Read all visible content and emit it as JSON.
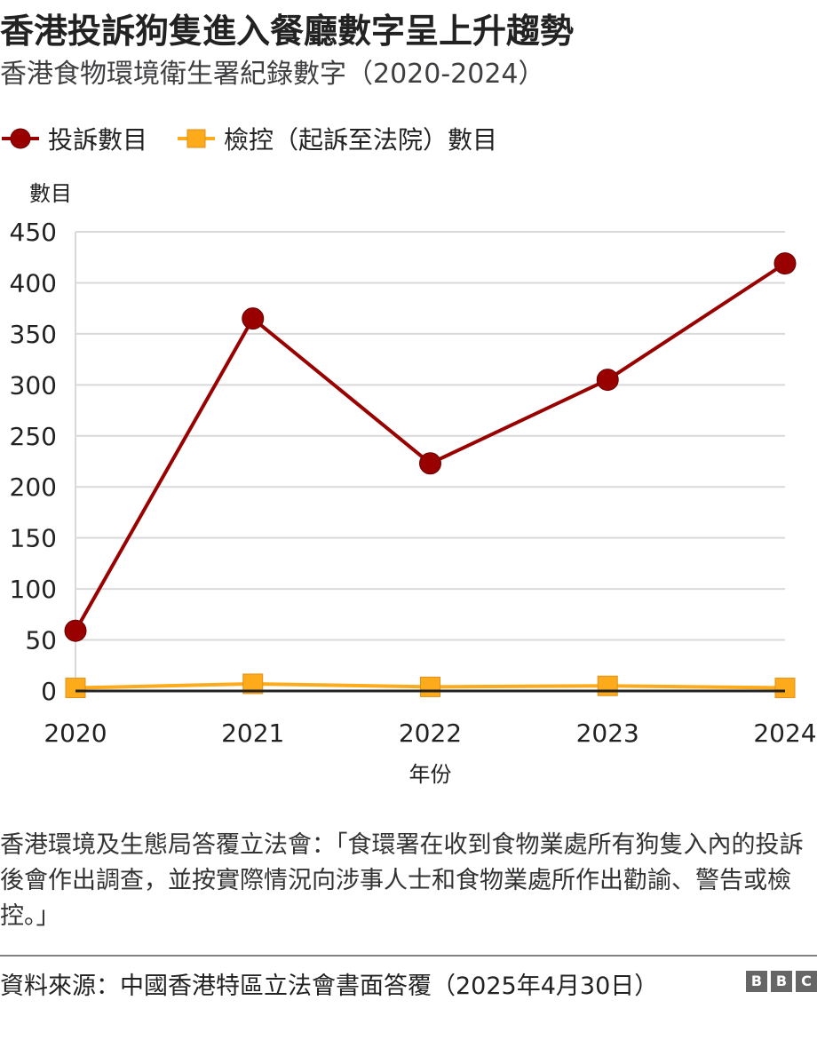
{
  "header": {
    "title": "香港投訴狗隻進入餐廳數字呈上升趨勢",
    "subtitle": "香港食物環境衛生署紀錄數字（2020-2024）"
  },
  "legend": {
    "items": [
      {
        "label": "投訴數目",
        "color": "#990000"
      },
      {
        "label": "檢控（起訴至法院）數目",
        "color": "#fdaa1b"
      }
    ]
  },
  "chart_data": {
    "type": "line",
    "title": "香港投訴狗隻進入餐廳數字呈上升趨勢",
    "subtitle": "香港食物環境衛生署紀錄數字（2020-2024）",
    "xlabel": "年份",
    "ylabel": "數目",
    "categories": [
      "2020",
      "2021",
      "2022",
      "2023",
      "2024"
    ],
    "yticks": [
      0,
      50,
      100,
      150,
      200,
      250,
      300,
      350,
      400,
      450
    ],
    "ylim": [
      0,
      450
    ],
    "grid": true,
    "legend_position": "top-left",
    "series": [
      {
        "name": "投訴數目",
        "values": [
          59,
          365,
          223,
          305,
          419
        ],
        "color": "#990000",
        "marker": "circle"
      },
      {
        "name": "檢控（起訴至法院）數目",
        "values": [
          3,
          7,
          4,
          5,
          3
        ],
        "color": "#fdaa1b",
        "marker": "square"
      }
    ]
  },
  "footer": {
    "note": "香港環境及生態局答覆立法會：「食環署在收到食物業處所有狗隻入內的投訴後會作出調查，並按實際情況向涉事人士和食物業處所作出勸諭、警告或檢控。」",
    "source": "資料來源：中國香港特區立法會書面答覆（2025年4月30日）",
    "logo": [
      "B",
      "B",
      "C"
    ]
  }
}
